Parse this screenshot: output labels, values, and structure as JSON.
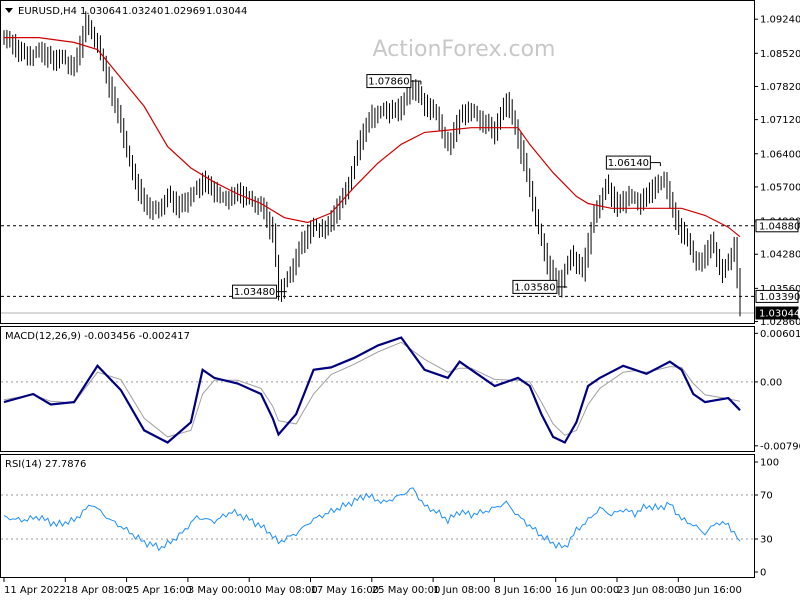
{
  "watermark": "ActionForex.com",
  "chart_data": [
    {
      "type": "candlestick",
      "header": {
        "symbol": "EURUSD,H4",
        "open": "1.03064",
        "high": "1.03240",
        "low": "1.02969",
        "close": "1.03044"
      },
      "ylim": [
        1.0285,
        1.0956
      ],
      "y_ticks": [
        "1.09240",
        "1.08520",
        "1.07820",
        "1.07120",
        "1.06400",
        "1.05700",
        "1.04980",
        "1.04280",
        "1.03560",
        "1.02860"
      ],
      "y_tick_values": [
        1.0924,
        1.0852,
        1.0782,
        1.0712,
        1.064,
        1.057,
        1.0498,
        1.0428,
        1.0356,
        1.0286
      ],
      "x_ticks": [
        "11 Apr 2022",
        "18 Apr 08:00",
        "25 Apr 16:00",
        "3 May 00:00",
        "10 May 08:00",
        "17 May 16:00",
        "25 May 00:00",
        "1 Jun 08:00",
        "8 Jun 16:00",
        "16 Jun 00:00",
        "23 Jun 08:00",
        "30 Jun 16:00"
      ],
      "price_path": [
        [
          0,
          1.089
        ],
        [
          2,
          1.086
        ],
        [
          4,
          1.0845
        ],
        [
          6,
          1.086
        ],
        [
          8,
          1.0835
        ],
        [
          10,
          1.0845
        ],
        [
          12,
          1.082
        ],
        [
          14,
          1.0915
        ],
        [
          16,
          1.0875
        ],
        [
          18,
          1.078
        ],
        [
          20,
          1.07
        ],
        [
          22,
          1.06
        ],
        [
          24,
          1.053
        ],
        [
          26,
          1.052
        ],
        [
          28,
          1.055
        ],
        [
          30,
          1.0525
        ],
        [
          32,
          1.0555
        ],
        [
          34,
          1.058
        ],
        [
          36,
          1.056
        ],
        [
          38,
          1.0545
        ],
        [
          40,
          1.0555
        ],
        [
          42,
          1.0545
        ],
        [
          44,
          1.053
        ],
        [
          46,
          1.047
        ],
        [
          47,
          1.0348
        ],
        [
          49,
          1.039
        ],
        [
          51,
          1.045
        ],
        [
          53,
          1.049
        ],
        [
          55,
          1.048
        ],
        [
          57,
          1.052
        ],
        [
          59,
          1.058
        ],
        [
          61,
          1.067
        ],
        [
          63,
          1.072
        ],
        [
          65,
          1.0735
        ],
        [
          67,
          1.0725
        ],
        [
          69,
          1.076
        ],
        [
          70,
          1.0786
        ],
        [
          72,
          1.074
        ],
        [
          74,
          1.0725
        ],
        [
          76,
          1.0655
        ],
        [
          78,
          1.0715
        ],
        [
          80,
          1.0735
        ],
        [
          82,
          1.0705
        ],
        [
          84,
          1.0685
        ],
        [
          86,
          1.076
        ],
        [
          87,
          1.0715
        ],
        [
          89,
          1.062
        ],
        [
          91,
          1.051
        ],
        [
          93,
          1.0405
        ],
        [
          95,
          1.0358
        ],
        [
          97,
          1.043
        ],
        [
          99,
          1.039
        ],
        [
          101,
          1.051
        ],
        [
          103,
          1.0575
        ],
        [
          105,
          1.0525
        ],
        [
          107,
          1.0555
        ],
        [
          109,
          1.0535
        ],
        [
          111,
          1.0565
        ],
        [
          113,
          1.059
        ],
        [
          115,
          1.0495
        ],
        [
          117,
          1.0455
        ],
        [
          119,
          1.0405
        ],
        [
          121,
          1.045
        ],
        [
          123,
          1.039
        ],
        [
          125,
          1.0446
        ],
        [
          126,
          1.0304
        ]
      ],
      "ma_path": [
        [
          0,
          1.0885
        ],
        [
          6,
          1.0885
        ],
        [
          12,
          1.0875
        ],
        [
          16,
          1.086
        ],
        [
          20,
          1.08
        ],
        [
          24,
          1.074
        ],
        [
          28,
          1.0655
        ],
        [
          32,
          1.061
        ],
        [
          36,
          1.058
        ],
        [
          40,
          1.0555
        ],
        [
          44,
          1.0535
        ],
        [
          48,
          1.0505
        ],
        [
          52,
          1.0495
        ],
        [
          56,
          1.0515
        ],
        [
          60,
          1.057
        ],
        [
          64,
          1.062
        ],
        [
          68,
          1.066
        ],
        [
          72,
          1.0685
        ],
        [
          76,
          1.069
        ],
        [
          80,
          1.0695
        ],
        [
          84,
          1.0695
        ],
        [
          88,
          1.0695
        ],
        [
          90,
          1.066
        ],
        [
          94,
          1.06
        ],
        [
          98,
          1.055
        ],
        [
          100,
          1.0535
        ],
        [
          104,
          1.0525
        ],
        [
          108,
          1.0525
        ],
        [
          112,
          1.0525
        ],
        [
          116,
          1.0525
        ],
        [
          120,
          1.051
        ],
        [
          124,
          1.0485
        ],
        [
          126,
          1.0465
        ]
      ],
      "candle_hi_offset": 0.0022,
      "candle_lo_offset": 0.0022,
      "h_lines": [
        {
          "value": 1.0488,
          "style": "dashed"
        },
        {
          "value": 1.0339,
          "style": "dashed"
        },
        {
          "value": 1.0304,
          "style": "solid"
        }
      ],
      "price_badges": [
        {
          "label": "1.04880",
          "value": 1.0488,
          "dark": false
        },
        {
          "label": "1.03390",
          "value": 1.0339,
          "dark": false
        },
        {
          "label": "1.03044",
          "value": 1.0304,
          "dark": true
        }
      ],
      "annotations": [
        {
          "label": "1.07860",
          "x": 70,
          "value": 1.0786,
          "side": "left"
        },
        {
          "label": "1.03480",
          "x": 47,
          "value": 1.0348,
          "side": "left"
        },
        {
          "label": "1.06140",
          "x": 111,
          "value": 1.0614,
          "side": "left"
        },
        {
          "label": "1.03580",
          "x": 95,
          "value": 1.0358,
          "side": "left"
        }
      ]
    },
    {
      "type": "line",
      "header": "MACD(12,26,9) -0.003456 -0.002417",
      "ylim": [
        -0.0083,
        0.0063
      ],
      "y_ticks": [
        "0.006012",
        "0.00",
        "-0.007907"
      ],
      "y_tick_values": [
        0.006012,
        0.0,
        -0.007907
      ],
      "ref_lines": [
        0.0
      ],
      "series": [
        {
          "role": "macd",
          "color": "#000080",
          "points": [
            [
              0,
              -0.0025
            ],
            [
              5,
              -0.0015
            ],
            [
              8,
              -0.0028
            ],
            [
              12,
              -0.0025
            ],
            [
              16,
              0.002
            ],
            [
              20,
              -0.001
            ],
            [
              24,
              -0.006
            ],
            [
              28,
              -0.0075
            ],
            [
              32,
              -0.005
            ],
            [
              34,
              0.0015
            ],
            [
              36,
              0.0005
            ],
            [
              40,
              -0.0002
            ],
            [
              44,
              -0.0015
            ],
            [
              46,
              -0.0045
            ],
            [
              47,
              -0.0065
            ],
            [
              50,
              -0.004
            ],
            [
              53,
              0.0015
            ],
            [
              56,
              0.0018
            ],
            [
              60,
              0.003
            ],
            [
              64,
              0.0045
            ],
            [
              68,
              0.0055
            ],
            [
              72,
              0.0015
            ],
            [
              76,
              0.0005
            ],
            [
              78,
              0.0025
            ],
            [
              80,
              0.0015
            ],
            [
              84,
              -0.0005
            ],
            [
              88,
              0.0005
            ],
            [
              90,
              -0.0005
            ],
            [
              92,
              -0.004
            ],
            [
              94,
              -0.0068
            ],
            [
              96,
              -0.0075
            ],
            [
              98,
              -0.005
            ],
            [
              100,
              -0.0005
            ],
            [
              102,
              0.0005
            ],
            [
              106,
              0.002
            ],
            [
              108,
              0.0015
            ],
            [
              110,
              0.001
            ],
            [
              114,
              0.0025
            ],
            [
              116,
              0.0015
            ],
            [
              118,
              -0.0015
            ],
            [
              120,
              -0.0025
            ],
            [
              124,
              -0.002
            ],
            [
              126,
              -0.0035
            ]
          ]
        },
        {
          "role": "signal",
          "color": "#a0a0a0",
          "points": [
            [
              0,
              -0.0022
            ],
            [
              5,
              -0.0016
            ],
            [
              8,
              -0.0024
            ],
            [
              12,
              -0.0026
            ],
            [
              16,
              0.0012
            ],
            [
              20,
              0.0003
            ],
            [
              24,
              -0.0045
            ],
            [
              28,
              -0.0068
            ],
            [
              32,
              -0.006
            ],
            [
              34,
              -0.0015
            ],
            [
              36,
              0.0002
            ],
            [
              40,
              0.0002
            ],
            [
              44,
              -0.0008
            ],
            [
              46,
              -0.003
            ],
            [
              47,
              -0.0048
            ],
            [
              50,
              -0.0052
            ],
            [
              53,
              -0.0015
            ],
            [
              56,
              0.0009
            ],
            [
              60,
              0.0022
            ],
            [
              64,
              0.0037
            ],
            [
              68,
              0.0049
            ],
            [
              72,
              0.0028
            ],
            [
              76,
              0.0012
            ],
            [
              78,
              0.0017
            ],
            [
              80,
              0.0017
            ],
            [
              84,
              0.0003
            ],
            [
              88,
              0.0002
            ],
            [
              90,
              0.0
            ],
            [
              92,
              -0.0025
            ],
            [
              94,
              -0.0052
            ],
            [
              96,
              -0.0066
            ],
            [
              98,
              -0.006
            ],
            [
              100,
              -0.0028
            ],
            [
              102,
              -0.0008
            ],
            [
              106,
              0.0012
            ],
            [
              108,
              0.0014
            ],
            [
              110,
              0.0012
            ],
            [
              114,
              0.0019
            ],
            [
              116,
              0.0018
            ],
            [
              118,
              -0.0002
            ],
            [
              120,
              -0.0016
            ],
            [
              124,
              -0.0021
            ],
            [
              126,
              -0.0024
            ]
          ]
        }
      ]
    },
    {
      "type": "line",
      "header": "RSI(14) 27.7876",
      "ylim": [
        0,
        100
      ],
      "y_ticks": [
        "100",
        "70",
        "30",
        "0"
      ],
      "y_tick_values": [
        100,
        70,
        30,
        0
      ],
      "ref_lines": [
        70,
        30
      ],
      "series": [
        {
          "name": "RSI(14)",
          "color": "#1e90ff",
          "points": [
            [
              0,
              50
            ],
            [
              3,
              47
            ],
            [
              6,
              50
            ],
            [
              9,
              43
            ],
            [
              12,
              47
            ],
            [
              15,
              62
            ],
            [
              18,
              48
            ],
            [
              21,
              38
            ],
            [
              24,
              27
            ],
            [
              27,
              22
            ],
            [
              30,
              33
            ],
            [
              33,
              50
            ],
            [
              36,
              46
            ],
            [
              39,
              55
            ],
            [
              42,
              48
            ],
            [
              45,
              38
            ],
            [
              47,
              27
            ],
            [
              50,
              35
            ],
            [
              53,
              48
            ],
            [
              56,
              55
            ],
            [
              59,
              62
            ],
            [
              62,
              70
            ],
            [
              65,
              63
            ],
            [
              68,
              70
            ],
            [
              70,
              76
            ],
            [
              72,
              60
            ],
            [
              74,
              55
            ],
            [
              76,
              47
            ],
            [
              78,
              55
            ],
            [
              80,
              52
            ],
            [
              83,
              56
            ],
            [
              86,
              63
            ],
            [
              88,
              51
            ],
            [
              90,
              42
            ],
            [
              92,
              33
            ],
            [
              94,
              26
            ],
            [
              96,
              22
            ],
            [
              98,
              38
            ],
            [
              100,
              47
            ],
            [
              102,
              58
            ],
            [
              104,
              52
            ],
            [
              106,
              57
            ],
            [
              108,
              53
            ],
            [
              110,
              60
            ],
            [
              112,
              58
            ],
            [
              114,
              62
            ],
            [
              116,
              48
            ],
            [
              118,
              43
            ],
            [
              120,
              35
            ],
            [
              122,
              45
            ],
            [
              124,
              43
            ],
            [
              126,
              28
            ]
          ]
        }
      ]
    }
  ]
}
